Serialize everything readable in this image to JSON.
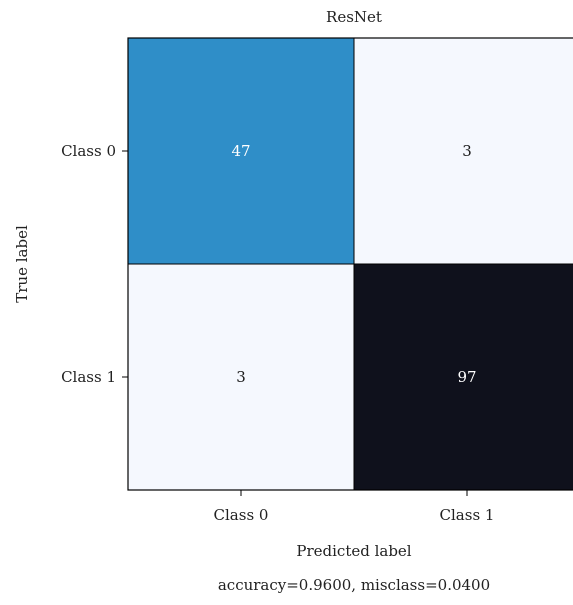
{
  "chart_data": {
    "type": "heatmap",
    "title": "ResNet",
    "xlabel": "Predicted label",
    "ylabel": "True label",
    "x_categories": [
      "Class 0",
      "Class 1"
    ],
    "y_categories": [
      "Class 0",
      "Class 1"
    ],
    "values": [
      [
        47,
        3
      ],
      [
        3,
        97
      ]
    ],
    "annotation": "accuracy=0.9600, misclass=0.0400",
    "colors": {
      "cells": [
        [
          "#2f8ec8",
          "#f5f8fe"
        ],
        [
          "#f5f8fe",
          "#0f111c"
        ]
      ],
      "text": [
        [
          "#ffffff",
          "#1a1a1a"
        ],
        [
          "#1a1a1a",
          "#ffffff"
        ]
      ]
    }
  }
}
